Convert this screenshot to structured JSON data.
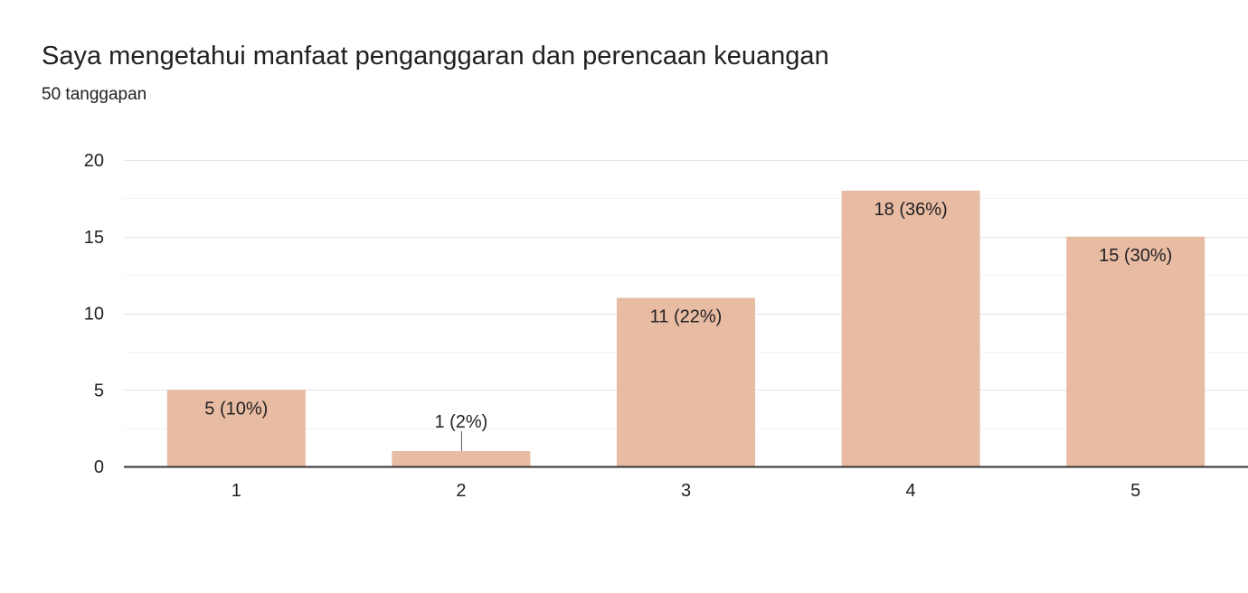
{
  "chart_data": {
    "type": "bar",
    "title": "Saya mengetahui manfaat penganggaran dan perencaan keuangan",
    "subtitle": "50 tanggapan",
    "categories": [
      "1",
      "2",
      "3",
      "4",
      "5"
    ],
    "values": [
      5,
      1,
      11,
      18,
      15
    ],
    "data_labels": [
      "5 (10%)",
      "1 (2%)",
      "11 (22%)",
      "18 (36%)",
      "15 (30%)"
    ],
    "ylim": [
      0,
      20
    ],
    "yticks": [
      0,
      5,
      10,
      15,
      20
    ],
    "grid": true,
    "xlabel": "",
    "ylabel": ""
  },
  "colors": {
    "bar": "#e8bba3",
    "grid_major": "#e6e6e6",
    "grid_minor": "#f3f3f3",
    "axis": "#333333"
  }
}
